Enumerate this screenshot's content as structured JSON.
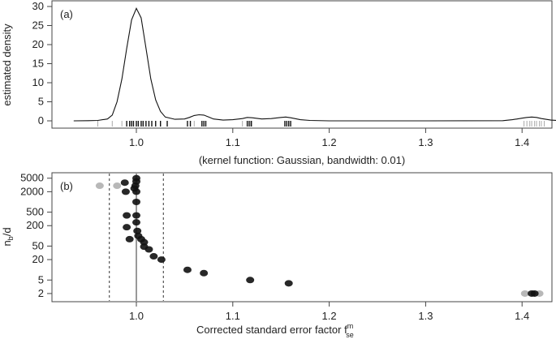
{
  "chart_data": [
    {
      "panel": "a",
      "type": "line",
      "panel_label": "(a)",
      "xlabel": "(kernel function: Gaussian, bandwidth: 0.01)",
      "ylabel": "estimated density",
      "xlim": [
        0.92,
        1.47
      ],
      "ylim": [
        0,
        30
      ],
      "x_ticks": [
        1.0,
        1.1,
        1.2,
        1.3,
        1.4
      ],
      "x_tick_labels": [
        "1.0",
        "1.1",
        "1.2",
        "1.3",
        "1.4"
      ],
      "y_ticks": [
        0,
        5,
        10,
        15,
        20,
        25,
        30
      ],
      "y_tick_labels": [
        "0",
        "5",
        "10",
        "15",
        "20",
        "25",
        "30"
      ],
      "grid": false,
      "density_curve": {
        "x": [
          0.935,
          0.95,
          0.96,
          0.97,
          0.975,
          0.98,
          0.985,
          0.99,
          0.995,
          1.0,
          1.005,
          1.01,
          1.015,
          1.02,
          1.025,
          1.03,
          1.04,
          1.05,
          1.055,
          1.06,
          1.065,
          1.07,
          1.075,
          1.08,
          1.09,
          1.1,
          1.11,
          1.115,
          1.12,
          1.13,
          1.14,
          1.15,
          1.155,
          1.16,
          1.17,
          1.18,
          1.2,
          1.3,
          1.38,
          1.39,
          1.4,
          1.405,
          1.41,
          1.415,
          1.42,
          1.43,
          1.44,
          1.455
        ],
        "y": [
          0.0,
          0.05,
          0.1,
          0.5,
          1.5,
          5.0,
          11.0,
          19.0,
          26.5,
          29.5,
          27.0,
          19.0,
          11.0,
          5.5,
          2.5,
          1.0,
          0.4,
          0.5,
          0.9,
          1.4,
          1.6,
          1.5,
          1.0,
          0.5,
          0.2,
          0.3,
          0.6,
          0.9,
          0.8,
          0.5,
          0.6,
          0.9,
          1.0,
          0.8,
          0.3,
          0.1,
          0.0,
          0.0,
          0.05,
          0.3,
          0.7,
          0.9,
          1.0,
          0.9,
          0.6,
          0.2,
          0.05,
          0.0
        ]
      },
      "rug_light": [
        0.96,
        0.975,
        0.985,
        1.06,
        1.11,
        1.12,
        1.16,
        1.402,
        1.405,
        1.408,
        1.41,
        1.413,
        1.415,
        1.418,
        1.42,
        1.423
      ],
      "rug_dark": [
        0.99,
        0.993,
        0.995,
        0.997,
        1.0,
        1.002,
        1.005,
        1.007,
        1.01,
        1.013,
        1.016,
        1.02,
        1.025,
        1.032,
        1.053,
        1.056,
        1.068,
        1.07,
        1.072,
        1.115,
        1.117,
        1.119,
        1.154,
        1.156,
        1.158,
        1.16
      ]
    },
    {
      "panel": "b",
      "type": "scatter",
      "panel_label": "(b)",
      "xlabel": "Corrected standard error factor f",
      "xlabel_sup": "m",
      "xlabel_sub": "se",
      "ylabel": "n",
      "ylabel_sub": "b",
      "ylabel_suffix": "/d",
      "xlim": [
        0.92,
        1.47
      ],
      "ylim": [
        1.6,
        5500
      ],
      "y_scale": "log",
      "x_ticks": [
        1.0,
        1.1,
        1.2,
        1.3,
        1.4
      ],
      "x_tick_labels": [
        "1.0",
        "1.1",
        "1.2",
        "1.3",
        "1.4"
      ],
      "y_ticks": [
        2,
        5,
        20,
        50,
        200,
        500,
        2000,
        5000
      ],
      "y_tick_labels": [
        "2",
        "5",
        "20",
        "50",
        "200",
        "500",
        "2000",
        "5000"
      ],
      "grid": false,
      "vertical_lines": [
        {
          "x": 0.972,
          "style": "dashed"
        },
        {
          "x": 1.0,
          "style": "solid"
        },
        {
          "x": 1.028,
          "style": "dashed"
        }
      ],
      "points_dark": [
        {
          "x": 1.0,
          "y": 5000
        },
        {
          "x": 1.0,
          "y": 4000
        },
        {
          "x": 0.999,
          "y": 3000
        },
        {
          "x": 0.998,
          "y": 2500
        },
        {
          "x": 1.0,
          "y": 2000
        },
        {
          "x": 0.988,
          "y": 3700
        },
        {
          "x": 0.989,
          "y": 2000
        },
        {
          "x": 1.0,
          "y": 1000
        },
        {
          "x": 1.0,
          "y": 400
        },
        {
          "x": 0.99,
          "y": 400
        },
        {
          "x": 1.0,
          "y": 250
        },
        {
          "x": 0.99,
          "y": 180
        },
        {
          "x": 1.001,
          "y": 140
        },
        {
          "x": 0.993,
          "y": 80
        },
        {
          "x": 1.002,
          "y": 100
        },
        {
          "x": 1.005,
          "y": 80
        },
        {
          "x": 1.008,
          "y": 65
        },
        {
          "x": 1.008,
          "y": 48
        },
        {
          "x": 1.013,
          "y": 40
        },
        {
          "x": 1.018,
          "y": 25
        },
        {
          "x": 1.026,
          "y": 20
        },
        {
          "x": 1.053,
          "y": 10
        },
        {
          "x": 1.07,
          "y": 8
        },
        {
          "x": 1.118,
          "y": 5
        },
        {
          "x": 1.158,
          "y": 4
        },
        {
          "x": 1.41,
          "y": 2
        },
        {
          "x": 1.413,
          "y": 2
        }
      ],
      "points_light": [
        {
          "x": 0.962,
          "y": 3000
        },
        {
          "x": 0.98,
          "y": 3000
        },
        {
          "x": 1.403,
          "y": 2
        },
        {
          "x": 1.418,
          "y": 2
        }
      ]
    }
  ]
}
